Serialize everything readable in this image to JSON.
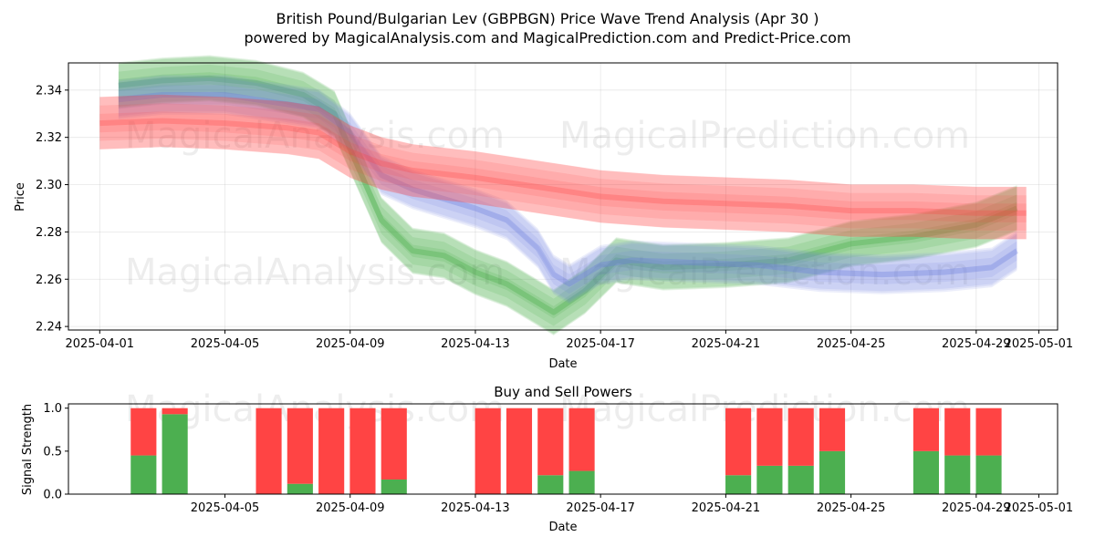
{
  "chart_data": [
    {
      "type": "area",
      "title_line1": "British Pound/Bulgarian Lev (GBPBGN) Price Wave Trend Analysis (Apr 30 )",
      "title_line2": "powered by MagicalAnalysis.com and MagicalPrediction.com and Predict-Price.com",
      "xlabel": "Date",
      "ylabel": "Price",
      "xlim_days": [
        -1.0,
        30.6
      ],
      "ylim": [
        2.2385,
        2.3515
      ],
      "x_ticks": [
        {
          "day": 0,
          "label": "2025-04-01"
        },
        {
          "day": 4,
          "label": "2025-04-05"
        },
        {
          "day": 8,
          "label": "2025-04-09"
        },
        {
          "day": 12,
          "label": "2025-04-13"
        },
        {
          "day": 16,
          "label": "2025-04-17"
        },
        {
          "day": 20,
          "label": "2025-04-21"
        },
        {
          "day": 24,
          "label": "2025-04-25"
        },
        {
          "day": 28,
          "label": "2025-04-29"
        },
        {
          "day": 30,
          "label": "2025-05-01"
        }
      ],
      "y_ticks": [
        2.24,
        2.26,
        2.28,
        2.3,
        2.32,
        2.34
      ],
      "y_tick_labels": [
        "2.24",
        "2.26",
        "2.28",
        "2.30",
        "2.32",
        "2.34"
      ],
      "watermarks": [
        "MagicalAnalysis.com",
        "MagicalPrediction.com",
        "MagicalAnalysis.com",
        "MagicalPrediction.com"
      ],
      "series": [
        {
          "name": "green-wave",
          "color": "#2ca02c",
          "x": [
            0.6,
            2,
            3.5,
            5,
            6.5,
            7.5,
            8,
            9,
            10,
            11,
            12,
            13,
            14,
            14.5,
            15.5,
            16.5,
            18,
            20,
            22,
            24,
            26,
            28,
            29.3
          ],
          "y": [
            2.342,
            2.344,
            2.345,
            2.343,
            2.338,
            2.33,
            2.315,
            2.285,
            2.272,
            2.27,
            2.263,
            2.258,
            2.25,
            2.246,
            2.255,
            2.268,
            2.265,
            2.266,
            2.268,
            2.275,
            2.278,
            2.283,
            2.29
          ],
          "half_width": 0.009
        },
        {
          "name": "blue-wave",
          "color": "#6a7fe0",
          "x": [
            0.6,
            2,
            4,
            6,
            7,
            8,
            9,
            10,
            11,
            12,
            13,
            14,
            14.5,
            15,
            16,
            17,
            19,
            21,
            23,
            25,
            27,
            28.5,
            29.3
          ],
          "y": [
            2.336,
            2.338,
            2.338,
            2.334,
            2.332,
            2.322,
            2.304,
            2.298,
            2.294,
            2.29,
            2.285,
            2.273,
            2.262,
            2.258,
            2.266,
            2.268,
            2.267,
            2.266,
            2.263,
            2.262,
            2.263,
            2.265,
            2.272
          ],
          "half_width": 0.007
        },
        {
          "name": "red-wave",
          "color": "#ff3b3b",
          "x": [
            0,
            2,
            4,
            6,
            7,
            8,
            9,
            10,
            12,
            14,
            16,
            18,
            20,
            22,
            24,
            26,
            28,
            29.6
          ],
          "y": [
            2.326,
            2.327,
            2.326,
            2.324,
            2.322,
            2.314,
            2.309,
            2.306,
            2.303,
            2.299,
            2.295,
            2.293,
            2.292,
            2.291,
            2.289,
            2.289,
            2.288,
            2.288
          ],
          "half_width": 0.011
        }
      ]
    },
    {
      "type": "bar",
      "title": "Buy and Sell Powers",
      "xlabel": "Date",
      "ylabel": "Signal Strength",
      "ylim": [
        0,
        1.05
      ],
      "xlim_days": [
        -1.0,
        30.6
      ],
      "y_ticks": [
        0,
        0.5,
        1.0
      ],
      "y_tick_labels": [
        "0.0",
        "0.5",
        "1.0"
      ],
      "x_ticks": [
        {
          "day": 4,
          "label": "2025-04-05"
        },
        {
          "day": 8,
          "label": "2025-04-09"
        },
        {
          "day": 12,
          "label": "2025-04-13"
        },
        {
          "day": 16,
          "label": "2025-04-17"
        },
        {
          "day": 20,
          "label": "2025-04-21"
        },
        {
          "day": 24,
          "label": "2025-04-25"
        },
        {
          "day": 28,
          "label": "2025-04-29"
        },
        {
          "day": 30,
          "label": "2025-05-01"
        }
      ],
      "watermarks": [
        "MagicalAnalysis.com",
        "MagicalPrediction.com"
      ],
      "buy_color": "#4caf50",
      "sell_color": "#ff4444",
      "bars": [
        {
          "day": 1.4,
          "buy": 0.45
        },
        {
          "day": 2.4,
          "buy": 0.93
        },
        {
          "day": 5.4,
          "buy": 0.0
        },
        {
          "day": 6.4,
          "buy": 0.12
        },
        {
          "day": 7.4,
          "buy": 0.0
        },
        {
          "day": 8.4,
          "buy": 0.0
        },
        {
          "day": 9.4,
          "buy": 0.17
        },
        {
          "day": 12.4,
          "buy": 0.0
        },
        {
          "day": 13.4,
          "buy": 0.0
        },
        {
          "day": 14.4,
          "buy": 0.22
        },
        {
          "day": 15.4,
          "buy": 0.27
        },
        {
          "day": 20.4,
          "buy": 0.22
        },
        {
          "day": 21.4,
          "buy": 0.33
        },
        {
          "day": 22.4,
          "buy": 0.33
        },
        {
          "day": 23.4,
          "buy": 0.5
        },
        {
          "day": 26.4,
          "buy": 0.5
        },
        {
          "day": 27.4,
          "buy": 0.45
        },
        {
          "day": 28.4,
          "buy": 0.45
        }
      ]
    }
  ]
}
